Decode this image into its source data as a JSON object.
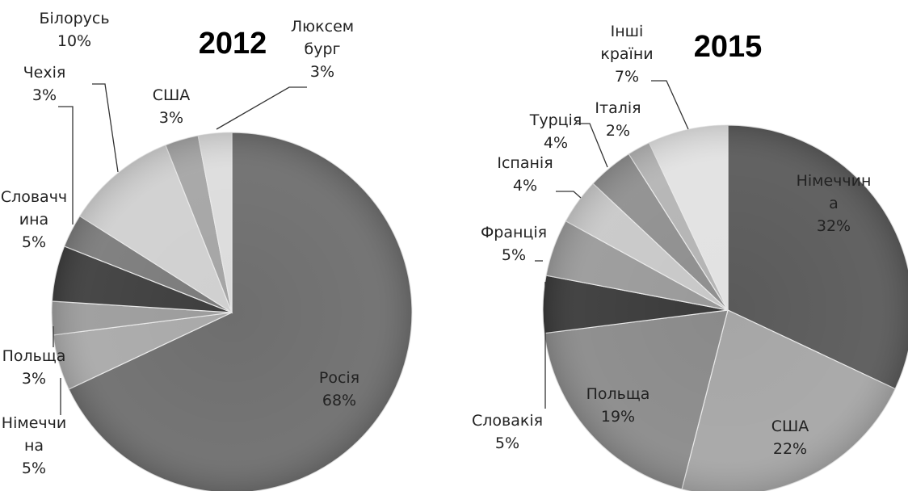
{
  "chart_data": [
    {
      "type": "pie",
      "title": "2012",
      "slices": [
        {
          "name": "Росія",
          "value": 68,
          "label_lines": [
            "Росія",
            "68%"
          ],
          "color": "#6e6e6e"
        },
        {
          "name": "Німеччина",
          "value": 5,
          "label_lines": [
            "Німеччи",
            "на",
            "5%"
          ],
          "color": "#a9a9a9"
        },
        {
          "name": "Польща",
          "value": 3,
          "label_lines": [
            "Польща",
            "3%"
          ],
          "color": "#9c9c9c"
        },
        {
          "name": "Словаччина",
          "value": 5,
          "label_lines": [
            "Словачч",
            "ина",
            "5%"
          ],
          "color": "#3e3e3e"
        },
        {
          "name": "Чехія",
          "value": 3,
          "label_lines": [
            "Чехія",
            "3%"
          ],
          "color": "#7b7b7b"
        },
        {
          "name": "Білорусь",
          "value": 10,
          "label_lines": [
            "Білорусь",
            "10%"
          ],
          "color": "#d0d0d0"
        },
        {
          "name": "США",
          "value": 3,
          "label_lines": [
            "США",
            "3%"
          ],
          "color": "#a5a5a5"
        },
        {
          "name": "Люксембург",
          "value": 3,
          "label_lines": [
            "Люксем",
            "бург",
            "3%"
          ],
          "color": "#dcdcdc"
        }
      ]
    },
    {
      "type": "pie",
      "title": "2015",
      "slices": [
        {
          "name": "Німеччина",
          "value": 32,
          "label_lines": [
            "Німеччин",
            "а",
            "32%"
          ],
          "color": "#5a5a5a"
        },
        {
          "name": "США",
          "value": 22,
          "label_lines": [
            "США",
            "22%"
          ],
          "color": "#a6a6a6"
        },
        {
          "name": "Польща",
          "value": 19,
          "label_lines": [
            "Польща",
            "19%"
          ],
          "color": "#8a8a8a"
        },
        {
          "name": "Словакія",
          "value": 5,
          "label_lines": [
            "Словакія",
            "5%"
          ],
          "color": "#3a3a3a"
        },
        {
          "name": "Франція",
          "value": 5,
          "label_lines": [
            "Франція",
            "5%"
          ],
          "color": "#9a9a9a"
        },
        {
          "name": "Іспанія",
          "value": 4,
          "label_lines": [
            "Іспанія",
            "4%"
          ],
          "color": "#c8c8c8"
        },
        {
          "name": "Турція",
          "value": 4,
          "label_lines": [
            "Турція",
            "4%"
          ],
          "color": "#8f8f8f"
        },
        {
          "name": "Італія",
          "value": 2,
          "label_lines": [
            "Італія",
            "2%"
          ],
          "color": "#b4b4b4"
        },
        {
          "name": "Інші країни",
          "value": 7,
          "label_lines": [
            "Інші",
            "країни",
            "7%"
          ],
          "color": "#e2e2e2"
        }
      ]
    }
  ]
}
